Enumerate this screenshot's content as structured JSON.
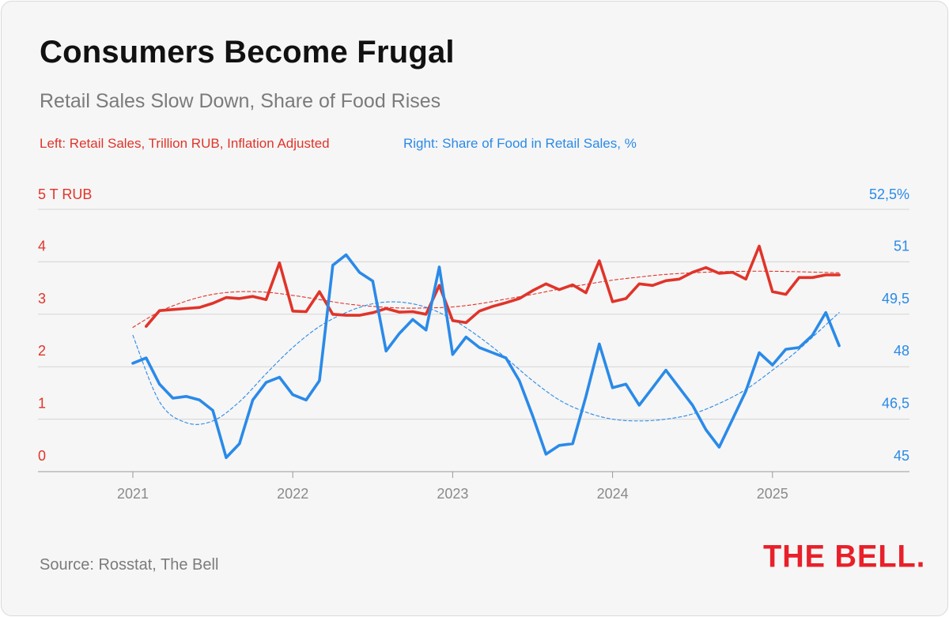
{
  "title": "Consumers Become Frugal",
  "subtitle": "Retail Sales Slow Down, Share of Food Rises",
  "source": "Source: Rosstat, The Bell",
  "logo_text": "THE BELL.",
  "colors": {
    "retail": "#e0342a",
    "food": "#2a8ae8",
    "grid": "#d4d4d4",
    "axis_text": "#8a8a8a",
    "logo": "#e8202a"
  },
  "chart_data": {
    "type": "line",
    "title": "Consumers Become Frugal",
    "subtitle": "Retail Sales Slow Down, Share of Food Rises",
    "x_ticks": [
      "2021",
      "2022",
      "2023",
      "2024",
      "2025"
    ],
    "x_range": [
      "2020-06",
      "2025-10"
    ],
    "left_axis": {
      "label": "Left: Retail Sales, Trillion RUB, Inflation Adjusted",
      "range": [
        0,
        5
      ],
      "ticks": [
        "0",
        "1",
        "2",
        "3",
        "4",
        "5 T RUB"
      ]
    },
    "right_axis": {
      "label": "Right: Share of Food in Retail Sales, %",
      "range": [
        45,
        52.5
      ],
      "ticks": [
        "45",
        "46,5",
        "48",
        "49,5",
        "51",
        "52,5%"
      ]
    },
    "grid": true,
    "series": [
      {
        "name": "Left: Retail Sales, Trillion RUB, Inflation Adjusted",
        "axis": "left",
        "style": "solid",
        "x": [
          "2021-02",
          "2021-03",
          "2021-04",
          "2021-05",
          "2021-06",
          "2021-07",
          "2021-08",
          "2021-09",
          "2021-10",
          "2021-11",
          "2021-12",
          "2022-01",
          "2022-02",
          "2022-03",
          "2022-04",
          "2022-05",
          "2022-06",
          "2022-07",
          "2022-08",
          "2022-09",
          "2022-10",
          "2022-11",
          "2022-12",
          "2023-01",
          "2023-02",
          "2023-03",
          "2023-04",
          "2023-05",
          "2023-06",
          "2023-07",
          "2023-08",
          "2023-09",
          "2023-10",
          "2023-11",
          "2023-12",
          "2024-01",
          "2024-02",
          "2024-03",
          "2024-04",
          "2024-05",
          "2024-06",
          "2024-07",
          "2024-08",
          "2024-09",
          "2024-10",
          "2024-11",
          "2024-12",
          "2025-01",
          "2025-02",
          "2025-03",
          "2025-04",
          "2025-05",
          "2025-06"
        ],
        "values": [
          2.77,
          3.07,
          3.09,
          3.11,
          3.13,
          3.21,
          3.32,
          3.3,
          3.34,
          3.28,
          3.98,
          3.06,
          3.05,
          3.43,
          3.0,
          2.98,
          2.98,
          3.03,
          3.11,
          3.04,
          3.05,
          3.0,
          3.55,
          2.88,
          2.84,
          3.06,
          3.15,
          3.22,
          3.3,
          3.45,
          3.58,
          3.47,
          3.56,
          3.41,
          4.02,
          3.24,
          3.3,
          3.58,
          3.55,
          3.64,
          3.67,
          3.8,
          3.89,
          3.78,
          3.8,
          3.67,
          4.3,
          3.43,
          3.38,
          3.7,
          3.7,
          3.75,
          3.75
        ]
      },
      {
        "name": "Right: Share of Food in Retail Sales, %",
        "axis": "right",
        "style": "solid",
        "x": [
          "2021-01",
          "2021-02",
          "2021-03",
          "2021-04",
          "2021-05",
          "2021-06",
          "2021-07",
          "2021-08",
          "2021-09",
          "2021-10",
          "2021-11",
          "2021-12",
          "2022-01",
          "2022-02",
          "2022-03",
          "2022-04",
          "2022-05",
          "2022-06",
          "2022-07",
          "2022-08",
          "2022-09",
          "2022-10",
          "2022-11",
          "2022-12",
          "2023-01",
          "2023-02",
          "2023-03",
          "2023-04",
          "2023-05",
          "2023-06",
          "2023-07",
          "2023-08",
          "2023-09",
          "2023-10",
          "2023-11",
          "2023-12",
          "2024-01",
          "2024-02",
          "2024-03",
          "2024-04",
          "2024-05",
          "2024-06",
          "2024-07",
          "2024-08",
          "2024-09",
          "2024-10",
          "2024-11",
          "2024-12",
          "2025-01",
          "2025-02",
          "2025-03",
          "2025-04",
          "2025-05",
          "2025-06"
        ],
        "values": [
          48.1,
          48.25,
          47.5,
          47.1,
          47.15,
          47.05,
          46.75,
          45.4,
          45.8,
          47.05,
          47.55,
          47.7,
          47.2,
          47.05,
          47.6,
          50.9,
          51.2,
          50.7,
          50.45,
          48.45,
          48.95,
          49.35,
          49.05,
          50.85,
          48.35,
          48.85,
          48.55,
          48.4,
          48.25,
          47.6,
          46.6,
          45.5,
          45.75,
          45.8,
          47.15,
          48.65,
          47.4,
          47.5,
          46.9,
          47.4,
          47.9,
          47.4,
          46.9,
          46.2,
          45.7,
          46.5,
          47.3,
          48.4,
          48.05,
          48.5,
          48.55,
          48.9,
          49.55,
          48.6
        ]
      },
      {
        "name": "",
        "axis": "left",
        "style": "dashed",
        "x": [
          "2021-01",
          "2021-03",
          "2021-05",
          "2021-07",
          "2021-09",
          "2021-11",
          "2022-01",
          "2022-03",
          "2022-05",
          "2022-07",
          "2022-09",
          "2022-11",
          "2023-01",
          "2023-03",
          "2023-05",
          "2023-07",
          "2023-09",
          "2023-11",
          "2024-01",
          "2024-03",
          "2024-05",
          "2024-07",
          "2024-09",
          "2024-11",
          "2025-01",
          "2025-03",
          "2025-06"
        ],
        "values": [
          2.75,
          3.05,
          3.25,
          3.38,
          3.43,
          3.42,
          3.36,
          3.28,
          3.2,
          3.15,
          3.12,
          3.12,
          3.14,
          3.2,
          3.29,
          3.38,
          3.48,
          3.57,
          3.65,
          3.71,
          3.76,
          3.79,
          3.81,
          3.82,
          3.82,
          3.81,
          3.79
        ]
      },
      {
        "name": "",
        "axis": "right",
        "style": "dashed",
        "x": [
          "2021-01",
          "2021-03",
          "2021-05",
          "2021-07",
          "2021-09",
          "2021-11",
          "2022-01",
          "2022-03",
          "2022-05",
          "2022-07",
          "2022-09",
          "2022-11",
          "2023-01",
          "2023-03",
          "2023-05",
          "2023-07",
          "2023-09",
          "2023-11",
          "2024-01",
          "2024-03",
          "2024-05",
          "2024-07",
          "2024-09",
          "2024-11",
          "2025-01",
          "2025-03",
          "2025-06"
        ],
        "values": [
          48.9,
          47.0,
          46.4,
          46.45,
          47.0,
          47.8,
          48.55,
          49.15,
          49.55,
          49.8,
          49.85,
          49.7,
          49.35,
          48.85,
          48.25,
          47.6,
          47.05,
          46.7,
          46.5,
          46.45,
          46.5,
          46.65,
          46.95,
          47.35,
          47.9,
          48.5,
          49.55
        ]
      }
    ]
  }
}
